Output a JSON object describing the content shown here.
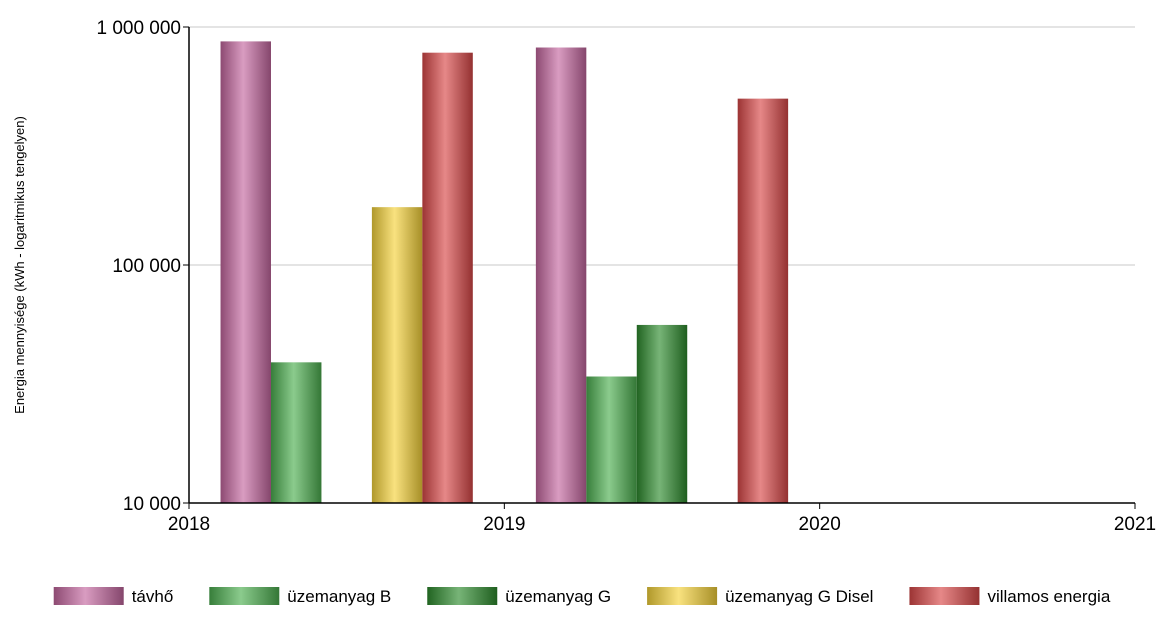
{
  "chart_data": {
    "type": "bar",
    "title": "",
    "ylabel": "Energia mennyisége (kWh - logaritmikus tengelyen)",
    "xlabel": "",
    "y_scale": "log",
    "ylim": [
      10000,
      1000000
    ],
    "y_ticks": [
      {
        "value": 10000,
        "label": "10 000"
      },
      {
        "value": 100000,
        "label": "100 000"
      },
      {
        "value": 1000000,
        "label": "1 000 000"
      }
    ],
    "x_axis": {
      "min": 2018,
      "max": 2021,
      "ticks": [
        "2018",
        "2019",
        "2020",
        "2021"
      ]
    },
    "grid": "horizontal",
    "legend_position": "bottom",
    "categories": [
      "2019",
      "2020"
    ],
    "series": [
      {
        "name": "távhő",
        "color": "#c4679f",
        "values": [
          870000,
          820000
        ]
      },
      {
        "name": "üzemanyag B",
        "color": "#4caf50",
        "values": [
          39000,
          34000
        ]
      },
      {
        "name": "üzemanyag G",
        "color": "#2e8b2e",
        "values": [
          null,
          56000
        ]
      },
      {
        "name": "üzemanyag G Disel",
        "color": "#f5d33a",
        "values": [
          175000,
          null
        ]
      },
      {
        "name": "villamos energia",
        "color": "#d94848",
        "values": [
          780000,
          500000
        ]
      }
    ]
  }
}
